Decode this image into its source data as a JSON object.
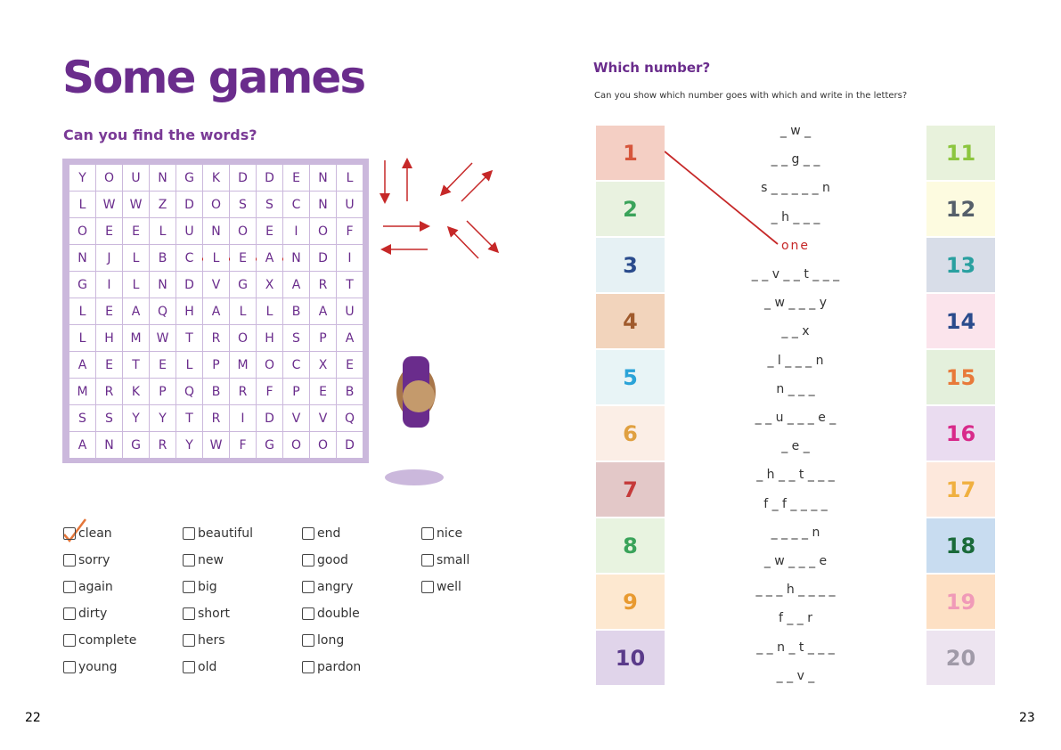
{
  "left_page": {
    "title": "Some games",
    "subtitle": "Can you find the words?",
    "grid": [
      [
        "Y",
        "O",
        "U",
        "N",
        "G",
        "K",
        "D",
        "D",
        "E",
        "N",
        "L"
      ],
      [
        "L",
        "W",
        "W",
        "Z",
        "D",
        "O",
        "S",
        "S",
        "C",
        "N",
        "U"
      ],
      [
        "O",
        "E",
        "E",
        "L",
        "U",
        "N",
        "O",
        "E",
        "I",
        "O",
        "F"
      ],
      [
        "N",
        "J",
        "L",
        "B",
        "C",
        "L",
        "E",
        "A",
        "N",
        "D",
        "I"
      ],
      [
        "G",
        "I",
        "L",
        "N",
        "D",
        "V",
        "G",
        "X",
        "A",
        "R",
        "T"
      ],
      [
        "L",
        "E",
        "A",
        "Q",
        "H",
        "A",
        "L",
        "L",
        "B",
        "A",
        "U"
      ],
      [
        "L",
        "H",
        "M",
        "W",
        "T",
        "R",
        "O",
        "H",
        "S",
        "P",
        "A"
      ],
      [
        "A",
        "E",
        "T",
        "E",
        "L",
        "P",
        "M",
        "O",
        "C",
        "X",
        "E"
      ],
      [
        "M",
        "R",
        "K",
        "P",
        "Q",
        "B",
        "R",
        "F",
        "P",
        "E",
        "B"
      ],
      [
        "S",
        "S",
        "Y",
        "Y",
        "T",
        "R",
        "I",
        "D",
        "V",
        "V",
        "Q"
      ],
      [
        "A",
        "N",
        "G",
        "R",
        "Y",
        "W",
        "F",
        "G",
        "O",
        "O",
        "D"
      ]
    ],
    "words": [
      [
        "clean",
        "sorry",
        "again",
        "dirty",
        "complete",
        "young"
      ],
      [
        "beautiful",
        "new",
        "big",
        "short",
        "hers",
        "old"
      ],
      [
        "end",
        "good",
        "angry",
        "double",
        "long",
        "pardon"
      ],
      [
        "nice",
        "small",
        "well"
      ]
    ],
    "page_number": "22"
  },
  "right_page": {
    "title": "Which number?",
    "instruction": "Can you show which number goes with which and write in the letters?",
    "left_numbers": [
      {
        "number": 1,
        "bg": "#f4cfc4",
        "color": "#d6563c"
      },
      {
        "number": 2,
        "bg": "#e9f2e0",
        "color": "#3aa35a"
      },
      {
        "number": 3,
        "bg": "#e6f1f4",
        "color": "#2a4b8c"
      },
      {
        "number": 4,
        "bg": "#f2d4bc",
        "color": "#a05a2c"
      },
      {
        "number": 5,
        "bg": "#e8f4f6",
        "color": "#2aa3d8"
      },
      {
        "number": 6,
        "bg": "#fbeee6",
        "color": "#e0a040"
      },
      {
        "number": 7,
        "bg": "#e3c8c8",
        "color": "#c53a3a"
      },
      {
        "number": 8,
        "bg": "#e8f3e0",
        "color": "#3aa35a"
      },
      {
        "number": 9,
        "bg": "#fde8d0",
        "color": "#e89a30"
      },
      {
        "number": 10,
        "bg": "#e0d4ea",
        "color": "#5a3a8a"
      }
    ],
    "right_numbers": [
      {
        "number": 11,
        "bg": "#e8f2dc",
        "color": "#8cc63f"
      },
      {
        "number": 12,
        "bg": "#fdfbe0",
        "color": "#555f6a"
      },
      {
        "number": 13,
        "bg": "#d8dde8",
        "color": "#2aa0a0"
      },
      {
        "number": 14,
        "bg": "#fbe4ec",
        "color": "#2a4b8c"
      },
      {
        "number": 15,
        "bg": "#e4f0dc",
        "color": "#e87a3a"
      },
      {
        "number": 16,
        "bg": "#eadcf0",
        "color": "#d82a8a"
      },
      {
        "number": 17,
        "bg": "#fde8dc",
        "color": "#f0b040"
      },
      {
        "number": 18,
        "bg": "#c8dcf0",
        "color": "#1a6a3a"
      },
      {
        "number": 19,
        "bg": "#fde0c4",
        "color": "#f09ab8"
      },
      {
        "number": 20,
        "bg": "#ede4f0",
        "color": "#a09aa8"
      }
    ],
    "hints": [
      "_ w _",
      "_ _ g _ _",
      "s _ _ _ _ _ n",
      "_ h _ _ _",
      "one",
      "_ _ v _ _ t _ _ _",
      "_ w _ _ _ y",
      "_ _ x",
      "_ l _ _ _ n",
      "n _ _ _",
      "_ _ u _ _ _ e _",
      "_ e _",
      "_ h _ _ t _ _ _",
      "f _ f _ _ _ _",
      "_ _ _ _ n",
      "_ w _ _ _ e",
      "_ _ _ h _ _ _ _",
      "f _ _ r",
      "_ _ n _ t _ _ _",
      "_ _ v _"
    ],
    "page_number": "23"
  }
}
